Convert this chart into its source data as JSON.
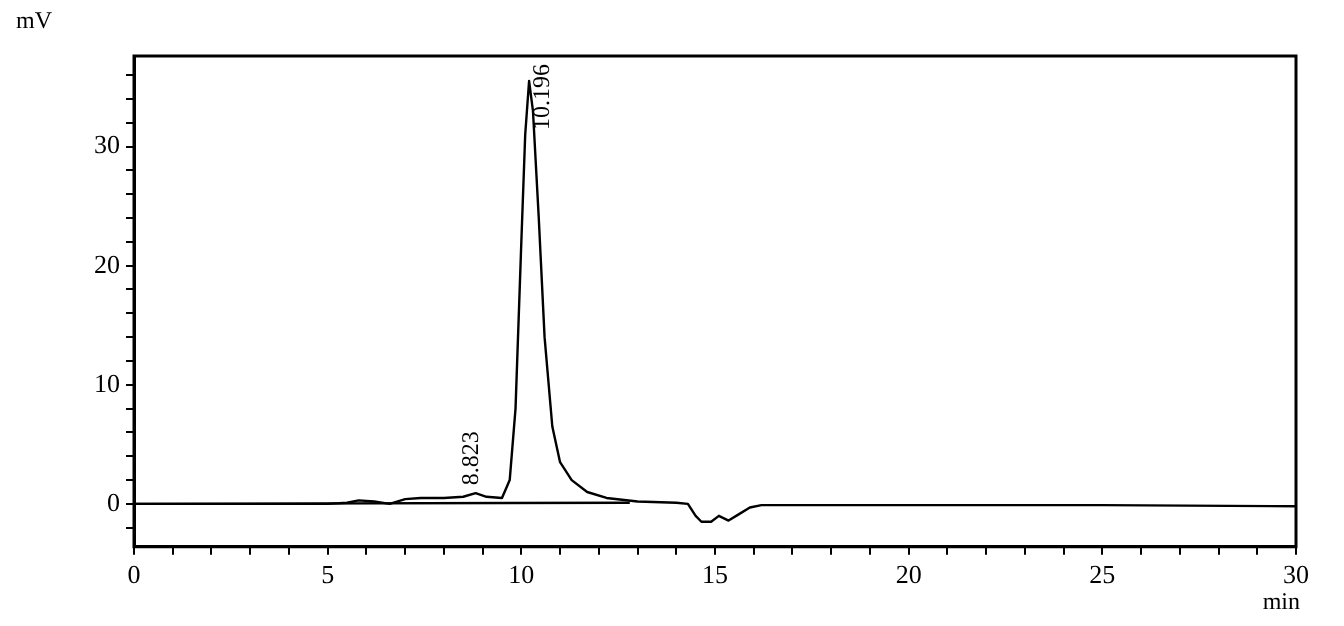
{
  "chart_data": {
    "type": "line",
    "xlabel": "min",
    "ylabel": "mV",
    "xlim": [
      0,
      30
    ],
    "xticks": [
      0,
      {
        "value": 1,
        "label": null
      },
      {
        "value": 2,
        "label": null
      },
      {
        "value": 3,
        "label": null
      },
      {
        "value": 4,
        "label": null
      },
      5,
      {
        "value": 6,
        "label": null
      },
      {
        "value": 7,
        "label": null
      },
      {
        "value": 8,
        "label": null
      },
      {
        "value": 9,
        "label": null
      },
      10,
      {
        "value": 11,
        "label": null
      },
      {
        "value": 12,
        "label": null
      },
      {
        "value": 13,
        "label": null
      },
      {
        "value": 14,
        "label": null
      },
      15,
      {
        "value": 16,
        "label": null
      },
      {
        "value": 17,
        "label": null
      },
      {
        "value": 18,
        "label": null
      },
      {
        "value": 19,
        "label": null
      },
      20,
      {
        "value": 21,
        "label": null
      },
      {
        "value": 22,
        "label": null
      },
      {
        "value": 23,
        "label": null
      },
      {
        "value": 24,
        "label": null
      },
      25,
      {
        "value": 26,
        "label": null
      },
      {
        "value": 27,
        "label": null
      },
      {
        "value": 28,
        "label": null
      },
      {
        "value": 29,
        "label": null
      },
      30
    ],
    "ylim": [
      -3.6,
      37.6
    ],
    "yticks": [
      {
        "value": -2,
        "label": null
      },
      0,
      {
        "value": 2,
        "label": null
      },
      {
        "value": 4,
        "label": null
      },
      {
        "value": 6,
        "label": null
      },
      {
        "value": 8,
        "label": null
      },
      10,
      {
        "value": 12,
        "label": null
      },
      {
        "value": 14,
        "label": null
      },
      {
        "value": 16,
        "label": null
      },
      {
        "value": 18,
        "label": null
      },
      20,
      {
        "value": 22,
        "label": null
      },
      {
        "value": 24,
        "label": null
      },
      {
        "value": 26,
        "label": null
      },
      {
        "value": 28,
        "label": null
      },
      30,
      {
        "value": 32,
        "label": null
      },
      {
        "value": 34,
        "label": null
      },
      {
        "value": 36,
        "label": null
      }
    ],
    "grid": false,
    "legend": false,
    "marker": "none",
    "line_style": "solid",
    "series": [
      {
        "color": "#000000",
        "x": [
          0,
          5,
          5.5,
          5.8,
          6.2,
          6.6,
          7.0,
          7.4,
          8.0,
          8.5,
          8.82,
          9.1,
          9.5,
          9.7,
          9.85,
          10.0,
          10.1,
          10.2,
          10.3,
          10.45,
          10.6,
          10.8,
          11.0,
          11.3,
          11.7,
          12.2,
          13.0,
          14.0,
          14.3,
          14.5,
          14.65,
          14.9,
          15.1,
          15.35,
          15.6,
          15.9,
          16.2,
          20,
          25,
          30
        ],
        "values": [
          0,
          0,
          0.1,
          0.3,
          0.2,
          0,
          0.4,
          0.5,
          0.5,
          0.6,
          0.9,
          0.6,
          0.5,
          2,
          8,
          22,
          31,
          35.5,
          33,
          24,
          14,
          6.5,
          3.5,
          2,
          1,
          0.5,
          0.2,
          0.1,
          0,
          -1,
          -1.5,
          -1.5,
          -1,
          -1.4,
          -0.9,
          -0.3,
          -0.1,
          -0.1,
          -0.1,
          -0.2
        ]
      },
      {
        "color": "#000000",
        "x": [
          0,
          12.8
        ],
        "values": [
          0,
          0.1
        ]
      }
    ],
    "annotations": [
      {
        "text": "8.823",
        "x": 8.823,
        "y": 0.9
      },
      {
        "text": "10.196",
        "x": 10.196,
        "y": 35.5
      }
    ]
  }
}
